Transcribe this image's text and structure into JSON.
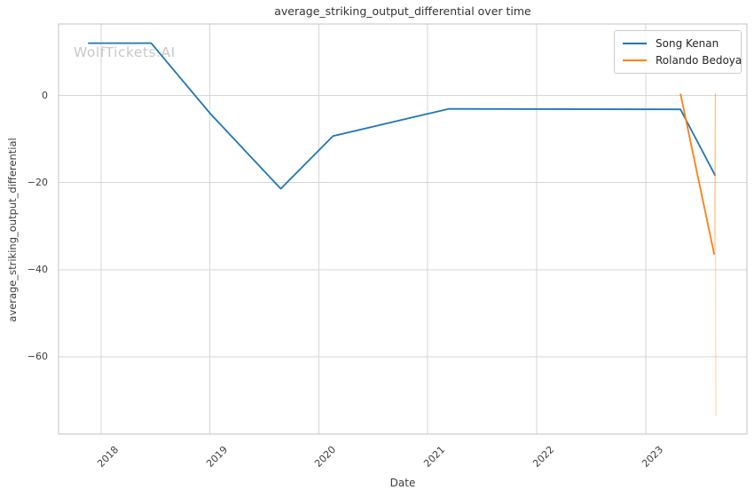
{
  "watermark": "WolfTickets.AI",
  "chart_data": {
    "type": "line",
    "title": "average_striking_output_differential over time",
    "xlabel": "Date",
    "ylabel": "average_striking_output_differential",
    "grid": true,
    "legend_position": "upper right",
    "xlim": [
      2017.61,
      2023.93
    ],
    "ylim": [
      -77.7,
      16.4
    ],
    "x_ticks": [
      2018,
      2019,
      2020,
      2021,
      2022,
      2023
    ],
    "x_tick_labels": [
      "2018",
      "2019",
      "2020",
      "2021",
      "2022",
      "2023"
    ],
    "y_ticks": [
      0,
      -20,
      -40,
      -60
    ],
    "y_tick_labels": [
      "0",
      "−20",
      "−40",
      "−60"
    ],
    "series": [
      {
        "name": "Song Kenan",
        "color": "#1f77b4",
        "x": [
          2017.88,
          2018.46,
          2019.0,
          2019.65,
          2020.13,
          2021.19,
          2023.32,
          2023.64
        ],
        "y": [
          12,
          12,
          -4.1,
          -21.4,
          -9.3,
          -3.1,
          -3.2,
          -18.4
        ]
      },
      {
        "name": "Rolando Bedoya",
        "color": "#ff7f0e",
        "x": [
          2023.32,
          2023.63,
          2023.64,
          2023.645
        ],
        "y": [
          0.4,
          -36.5,
          0.5,
          -73.5
        ]
      }
    ]
  }
}
